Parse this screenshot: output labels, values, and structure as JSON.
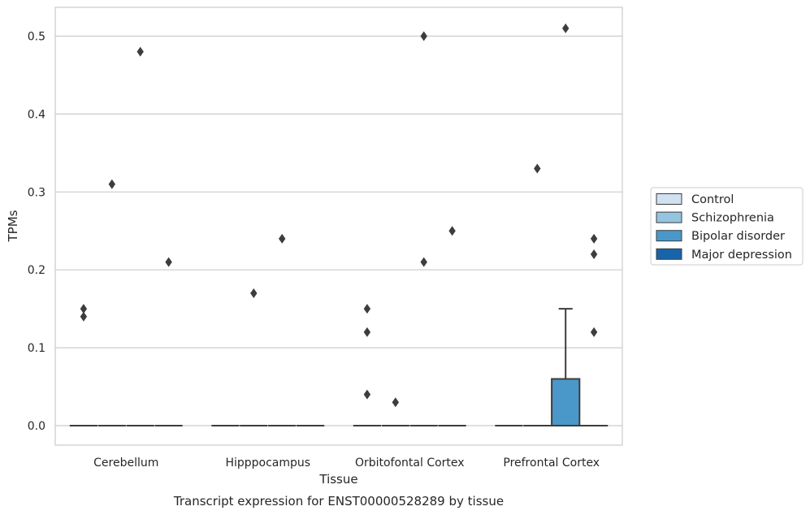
{
  "chart_data": {
    "type": "box",
    "title": "",
    "caption": "Transcript expression for ENST00000528289 by tissue",
    "xlabel": "Tissue",
    "ylabel": "TPMs",
    "ylim": [
      -0.025,
      0.537
    ],
    "yticks": [
      0.0,
      0.1,
      0.2,
      0.3,
      0.4,
      0.5
    ],
    "ytick_labels": [
      "0.0",
      "0.1",
      "0.2",
      "0.3",
      "0.4",
      "0.5"
    ],
    "grid": "horizontal",
    "legend_position": "right",
    "categories": [
      "Cerebellum",
      "Hipppocampus",
      "Orbitofontal Cortex",
      "Prefrontal Cortex"
    ],
    "series": [
      {
        "name": "Control",
        "color": "#d0e1f2",
        "boxes": [
          {
            "q1": 0,
            "median": 0,
            "q3": 0,
            "whislo": 0,
            "whishi": 0,
            "fliers": [
              0.14,
              0.15
            ]
          },
          {
            "q1": 0,
            "median": 0,
            "q3": 0,
            "whislo": 0,
            "whishi": 0,
            "fliers": []
          },
          {
            "q1": 0,
            "median": 0,
            "q3": 0,
            "whislo": 0,
            "whishi": 0,
            "fliers": [
              0.04,
              0.12,
              0.15
            ]
          },
          {
            "q1": 0,
            "median": 0,
            "q3": 0,
            "whislo": 0,
            "whishi": 0,
            "fliers": []
          }
        ]
      },
      {
        "name": "Schizophrenia",
        "color": "#94c4df",
        "boxes": [
          {
            "q1": 0,
            "median": 0,
            "q3": 0,
            "whislo": 0,
            "whishi": 0,
            "fliers": [
              0.31
            ]
          },
          {
            "q1": 0,
            "median": 0,
            "q3": 0,
            "whislo": 0,
            "whishi": 0,
            "fliers": [
              0.17
            ]
          },
          {
            "q1": 0,
            "median": 0,
            "q3": 0,
            "whislo": 0,
            "whishi": 0,
            "fliers": [
              0.03
            ]
          },
          {
            "q1": 0,
            "median": 0,
            "q3": 0,
            "whislo": 0,
            "whishi": 0,
            "fliers": [
              0.33
            ]
          }
        ]
      },
      {
        "name": "Bipolar disorder",
        "color": "#4a98c9",
        "boxes": [
          {
            "q1": 0,
            "median": 0,
            "q3": 0,
            "whislo": 0,
            "whishi": 0,
            "fliers": [
              0.48
            ]
          },
          {
            "q1": 0,
            "median": 0,
            "q3": 0,
            "whislo": 0,
            "whishi": 0,
            "fliers": [
              0.24
            ]
          },
          {
            "q1": 0,
            "median": 0,
            "q3": 0,
            "whislo": 0,
            "whishi": 0,
            "fliers": [
              0.21,
              0.5
            ]
          },
          {
            "q1": 0,
            "median": 0,
            "q3": 0.06,
            "whislo": 0,
            "whishi": 0.15,
            "fliers": [
              0.51
            ]
          }
        ]
      },
      {
        "name": "Major depression",
        "color": "#1764ab",
        "boxes": [
          {
            "q1": 0,
            "median": 0,
            "q3": 0,
            "whislo": 0,
            "whishi": 0,
            "fliers": [
              0.21
            ]
          },
          {
            "q1": 0,
            "median": 0,
            "q3": 0,
            "whislo": 0,
            "whishi": 0,
            "fliers": []
          },
          {
            "q1": 0,
            "median": 0,
            "q3": 0,
            "whislo": 0,
            "whishi": 0,
            "fliers": [
              0.25
            ]
          },
          {
            "q1": 0,
            "median": 0,
            "q3": 0,
            "whislo": 0,
            "whishi": 0,
            "fliers": [
              0.12,
              0.22,
              0.24
            ]
          }
        ]
      }
    ]
  }
}
